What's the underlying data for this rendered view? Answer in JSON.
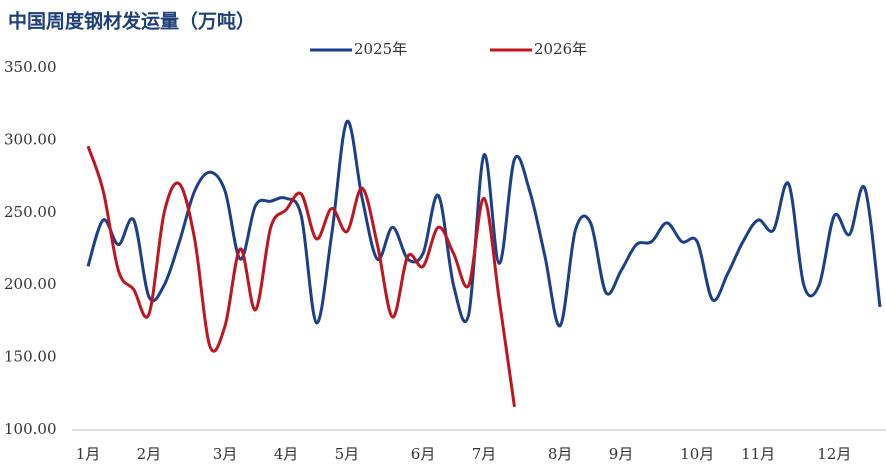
{
  "chart_data": {
    "type": "line",
    "title": "中国周度钢材发运量（万吨）",
    "categories": [
      "1月",
      null,
      null,
      null,
      "2月",
      null,
      null,
      null,
      null,
      "3月",
      null,
      null,
      null,
      "4月",
      null,
      null,
      null,
      "5月",
      null,
      null,
      null,
      null,
      "6月",
      null,
      null,
      null,
      "7月",
      null,
      null,
      null,
      null,
      "8月",
      null,
      null,
      null,
      "9月",
      null,
      null,
      null,
      null,
      "10月",
      null,
      null,
      null,
      "11月",
      null,
      null,
      null,
      null,
      "12月",
      null,
      null,
      null
    ],
    "series": [
      {
        "name": "2025年",
        "color": "#1b3f8b",
        "values": [
          213,
          245,
          228,
          245,
          192,
          200,
          230,
          265,
          278,
          265,
          218,
          255,
          258,
          260,
          248,
          174,
          235,
          313,
          260,
          218,
          240,
          218,
          222,
          262,
          200,
          180,
          290,
          215,
          287,
          265,
          220,
          172,
          238,
          243,
          195,
          210,
          228,
          230,
          243,
          230,
          230,
          190,
          208,
          230,
          245,
          238,
          270,
          200,
          200,
          248,
          235,
          267,
          185
        ]
      },
      {
        "name": "2026年",
        "color": "#c0141e",
        "values": [
          296,
          265,
          210,
          197,
          180,
          250,
          270,
          232,
          158,
          172,
          225,
          183,
          240,
          252,
          263,
          232,
          253,
          237,
          267,
          228,
          178,
          220,
          213,
          240,
          222,
          200,
          260,
          190,
          116,
          null,
          null,
          null,
          null,
          null,
          null,
          null,
          null,
          null,
          null,
          null,
          null,
          null,
          null,
          null,
          null,
          null,
          null,
          null,
          null,
          null,
          null,
          null,
          null
        ]
      }
    ],
    "ylim": [
      100,
      350
    ],
    "yticks": [
      {
        "value": 100,
        "label": "100.00"
      },
      {
        "value": 150,
        "label": "150.00"
      },
      {
        "value": 200,
        "label": "200.00"
      },
      {
        "value": 250,
        "label": "250.00"
      },
      {
        "value": 300,
        "label": "300.00"
      },
      {
        "value": 350,
        "label": "350.00"
      }
    ],
    "grid": false,
    "legend": "top"
  }
}
